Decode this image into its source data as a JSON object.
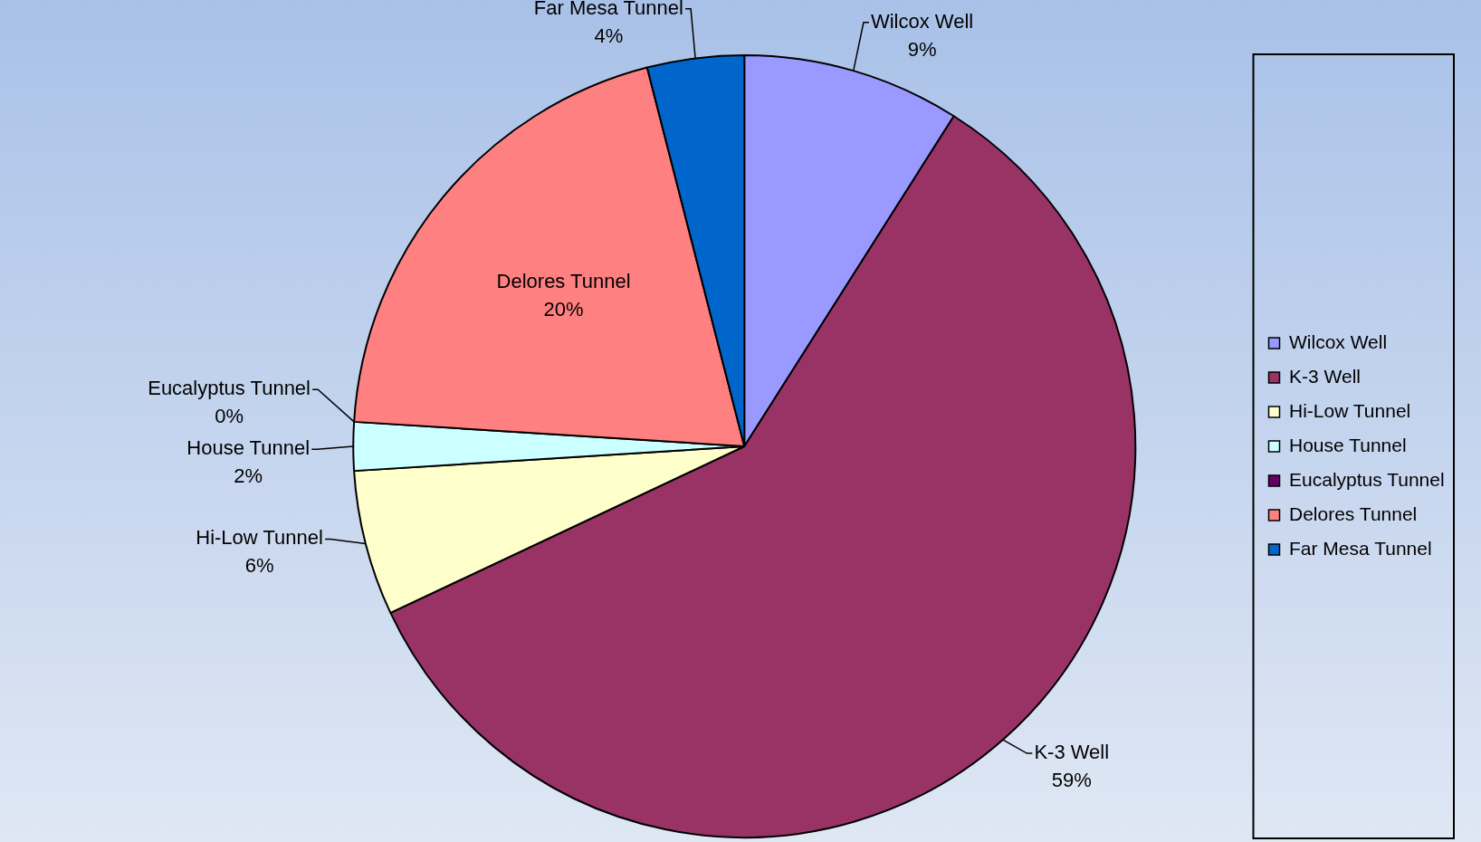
{
  "chart_data": {
    "type": "pie",
    "categories": [
      "Wilcox Well",
      "K-3 Well",
      "Hi-Low Tunnel",
      "House Tunnel",
      "Eucalyptus Tunnel",
      "Delores Tunnel",
      "Far Mesa Tunnel"
    ],
    "values": [
      9,
      59,
      6,
      2,
      0,
      20,
      4
    ],
    "value_labels": [
      "9%",
      "59%",
      "6%",
      "2%",
      "0%",
      "20%",
      "4%"
    ],
    "colors": [
      "#9999ff",
      "#993366",
      "#ffffcc",
      "#ccffff",
      "#660066",
      "#ff8080",
      "#0066cc"
    ],
    "legend": "right"
  }
}
